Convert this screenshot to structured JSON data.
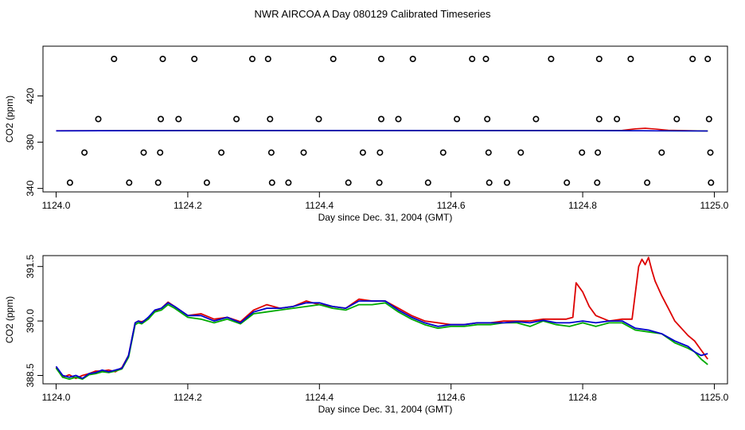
{
  "figure_title": "NWR AIRCOA A  Day 080129  Calibrated Timeseries",
  "chart_data": [
    {
      "type": "scatter",
      "xlabel": "Day since Dec. 31, 2004 (GMT)",
      "ylabel": "CO2 (ppm)",
      "xlim": [
        1123.98,
        1125.02
      ],
      "ylim": [
        337,
        463
      ],
      "xticks": [
        1124.0,
        1124.2,
        1124.4,
        1124.6,
        1124.8,
        1125.0
      ],
      "xtick_labels": [
        "1124.0",
        "1124.2",
        "1124.4",
        "1124.6",
        "1124.8",
        "1125.0"
      ],
      "yticks": [
        340,
        380,
        420
      ],
      "ytick_labels": [
        "340",
        "380",
        "420"
      ],
      "grid": false,
      "points": [
        [
          1124.088,
          452
        ],
        [
          1124.162,
          452
        ],
        [
          1124.21,
          452
        ],
        [
          1124.298,
          452
        ],
        [
          1124.322,
          452
        ],
        [
          1124.421,
          452
        ],
        [
          1124.494,
          452
        ],
        [
          1124.542,
          452
        ],
        [
          1124.632,
          452
        ],
        [
          1124.653,
          452
        ],
        [
          1124.752,
          452
        ],
        [
          1124.825,
          452
        ],
        [
          1124.873,
          452
        ],
        [
          1124.967,
          452
        ],
        [
          1124.99,
          452
        ],
        [
          1124.064,
          400
        ],
        [
          1124.159,
          400
        ],
        [
          1124.186,
          400
        ],
        [
          1124.274,
          400
        ],
        [
          1124.325,
          400
        ],
        [
          1124.399,
          400
        ],
        [
          1124.494,
          400
        ],
        [
          1124.52,
          400
        ],
        [
          1124.609,
          400
        ],
        [
          1124.655,
          400
        ],
        [
          1124.729,
          400
        ],
        [
          1124.825,
          400
        ],
        [
          1124.852,
          400
        ],
        [
          1124.943,
          400
        ],
        [
          1124.992,
          400
        ],
        [
          1124.043,
          371
        ],
        [
          1124.133,
          371
        ],
        [
          1124.158,
          371
        ],
        [
          1124.251,
          371
        ],
        [
          1124.327,
          371
        ],
        [
          1124.376,
          371
        ],
        [
          1124.466,
          371
        ],
        [
          1124.492,
          371
        ],
        [
          1124.588,
          371
        ],
        [
          1124.657,
          371
        ],
        [
          1124.706,
          371
        ],
        [
          1124.799,
          371
        ],
        [
          1124.823,
          371
        ],
        [
          1124.92,
          371
        ],
        [
          1124.994,
          371
        ],
        [
          1124.021,
          345
        ],
        [
          1124.111,
          345
        ],
        [
          1124.155,
          345
        ],
        [
          1124.229,
          345
        ],
        [
          1124.328,
          345
        ],
        [
          1124.353,
          345
        ],
        [
          1124.444,
          345
        ],
        [
          1124.491,
          345
        ],
        [
          1124.565,
          345
        ],
        [
          1124.658,
          345
        ],
        [
          1124.685,
          345
        ],
        [
          1124.776,
          345
        ],
        [
          1124.822,
          345
        ],
        [
          1124.898,
          345
        ],
        [
          1124.995,
          345
        ]
      ],
      "series": [
        {
          "color": "#dd0000",
          "x": [
            1124.0,
            1124.2,
            1124.4,
            1124.6,
            1124.8,
            1124.86,
            1124.88,
            1124.895,
            1124.91,
            1124.93,
            1124.99
          ],
          "y": [
            389.9,
            390.0,
            390.1,
            390.0,
            390.1,
            390.2,
            391.5,
            392.0,
            391.4,
            390.3,
            389.7
          ]
        },
        {
          "color": "#00aa00",
          "x": [
            1124.0,
            1124.2,
            1124.4,
            1124.6,
            1124.8,
            1124.99
          ],
          "y": [
            389.8,
            390.0,
            390.1,
            390.0,
            390.0,
            389.7
          ]
        },
        {
          "color": "#0000cc",
          "x": [
            1124.0,
            1124.2,
            1124.4,
            1124.6,
            1124.8,
            1124.99
          ],
          "y": [
            389.8,
            390.0,
            390.1,
            390.0,
            390.0,
            389.7
          ]
        }
      ]
    },
    {
      "type": "line",
      "xlabel": "Day since Dec. 31, 2004 (GMT)",
      "ylabel": "CO2 (ppm)",
      "xlim": [
        1123.98,
        1125.02
      ],
      "ylim": [
        388.27,
        391.8
      ],
      "xticks": [
        1124.0,
        1124.2,
        1124.4,
        1124.6,
        1124.8,
        1125.0
      ],
      "xtick_labels": [
        "1124.0",
        "1124.2",
        "1124.4",
        "1124.6",
        "1124.8",
        "1125.0"
      ],
      "yticks": [
        388.5,
        390.0,
        391.5
      ],
      "ytick_labels": [
        "388.5",
        "390.0",
        "391.5"
      ],
      "grid": false,
      "series": [
        {
          "color": "#dd0000",
          "x": [
            1124.0,
            1124.01,
            1124.02,
            1124.03,
            1124.04,
            1124.05,
            1124.06,
            1124.07,
            1124.08,
            1124.09,
            1124.1,
            1124.11,
            1124.12,
            1124.125,
            1124.13,
            1124.14,
            1124.15,
            1124.16,
            1124.17,
            1124.18,
            1124.2,
            1124.22,
            1124.24,
            1124.26,
            1124.28,
            1124.3,
            1124.32,
            1124.34,
            1124.36,
            1124.38,
            1124.4,
            1124.42,
            1124.44,
            1124.46,
            1124.48,
            1124.5,
            1124.52,
            1124.54,
            1124.56,
            1124.58,
            1124.6,
            1124.62,
            1124.64,
            1124.66,
            1124.68,
            1124.7,
            1124.72,
            1124.74,
            1124.76,
            1124.775,
            1124.785,
            1124.79,
            1124.8,
            1124.81,
            1124.82,
            1124.84,
            1124.86,
            1124.875,
            1124.885,
            1124.89,
            1124.895,
            1124.9,
            1124.905,
            1124.91,
            1124.92,
            1124.93,
            1124.94,
            1124.95,
            1124.96,
            1124.97,
            1124.98,
            1124.99
          ],
          "y": [
            388.72,
            388.45,
            388.52,
            388.42,
            388.5,
            388.55,
            388.62,
            388.62,
            388.65,
            388.6,
            388.72,
            389.05,
            389.95,
            390.0,
            389.98,
            390.05,
            390.28,
            390.35,
            390.52,
            390.4,
            390.15,
            390.2,
            390.05,
            390.1,
            389.98,
            390.3,
            390.45,
            390.35,
            390.4,
            390.55,
            390.45,
            390.4,
            390.35,
            390.6,
            390.55,
            390.55,
            390.35,
            390.15,
            390.0,
            389.95,
            389.9,
            389.9,
            389.95,
            389.95,
            390.0,
            390.0,
            390.0,
            390.05,
            390.05,
            390.05,
            390.1,
            391.05,
            390.8,
            390.4,
            390.15,
            390.0,
            390.05,
            390.05,
            391.5,
            391.7,
            391.55,
            391.75,
            391.4,
            391.1,
            390.7,
            390.35,
            390.0,
            389.8,
            389.6,
            389.45,
            389.2,
            388.95
          ]
        },
        {
          "color": "#00aa00",
          "x": [
            1124.0,
            1124.01,
            1124.02,
            1124.03,
            1124.04,
            1124.05,
            1124.06,
            1124.07,
            1124.08,
            1124.09,
            1124.1,
            1124.11,
            1124.12,
            1124.125,
            1124.13,
            1124.14,
            1124.15,
            1124.16,
            1124.17,
            1124.18,
            1124.2,
            1124.22,
            1124.24,
            1124.26,
            1124.28,
            1124.3,
            1124.32,
            1124.34,
            1124.36,
            1124.38,
            1124.4,
            1124.42,
            1124.44,
            1124.46,
            1124.48,
            1124.5,
            1124.52,
            1124.54,
            1124.56,
            1124.58,
            1124.6,
            1124.62,
            1124.64,
            1124.66,
            1124.68,
            1124.7,
            1124.72,
            1124.74,
            1124.76,
            1124.78,
            1124.8,
            1124.82,
            1124.84,
            1124.86,
            1124.88,
            1124.9,
            1124.92,
            1124.94,
            1124.96,
            1124.97,
            1124.98,
            1124.99
          ],
          "y": [
            388.7,
            388.45,
            388.4,
            388.45,
            388.4,
            388.52,
            388.55,
            388.6,
            388.58,
            388.62,
            388.68,
            389.0,
            389.9,
            389.95,
            389.92,
            390.05,
            390.25,
            390.3,
            390.45,
            390.35,
            390.1,
            390.05,
            389.95,
            390.05,
            389.92,
            390.2,
            390.25,
            390.3,
            390.35,
            390.4,
            390.45,
            390.35,
            390.3,
            390.45,
            390.45,
            390.5,
            390.25,
            390.05,
            389.9,
            389.8,
            389.85,
            389.85,
            389.9,
            389.9,
            389.95,
            389.95,
            389.85,
            390.0,
            389.9,
            389.85,
            389.95,
            389.85,
            389.95,
            389.95,
            389.75,
            389.7,
            389.65,
            389.4,
            389.25,
            389.15,
            388.95,
            388.8
          ]
        },
        {
          "color": "#0000cc",
          "x": [
            1124.0,
            1124.01,
            1124.02,
            1124.03,
            1124.04,
            1124.05,
            1124.06,
            1124.07,
            1124.08,
            1124.09,
            1124.1,
            1124.11,
            1124.12,
            1124.125,
            1124.13,
            1124.14,
            1124.15,
            1124.16,
            1124.17,
            1124.18,
            1124.2,
            1124.22,
            1124.24,
            1124.26,
            1124.28,
            1124.3,
            1124.32,
            1124.34,
            1124.36,
            1124.38,
            1124.4,
            1124.42,
            1124.44,
            1124.46,
            1124.48,
            1124.5,
            1124.52,
            1124.54,
            1124.56,
            1124.58,
            1124.6,
            1124.62,
            1124.64,
            1124.66,
            1124.68,
            1124.7,
            1124.72,
            1124.74,
            1124.76,
            1124.78,
            1124.8,
            1124.82,
            1124.84,
            1124.86,
            1124.88,
            1124.9,
            1124.92,
            1124.94,
            1124.96,
            1124.97,
            1124.98,
            1124.99
          ],
          "y": [
            388.75,
            388.5,
            388.45,
            388.5,
            388.42,
            388.55,
            388.58,
            388.65,
            388.6,
            388.65,
            388.7,
            389.05,
            389.95,
            390.0,
            389.95,
            390.1,
            390.3,
            390.35,
            390.5,
            390.4,
            390.15,
            390.15,
            390.0,
            390.1,
            389.95,
            390.25,
            390.35,
            390.35,
            390.4,
            390.5,
            390.5,
            390.4,
            390.35,
            390.55,
            390.55,
            390.55,
            390.3,
            390.1,
            389.95,
            389.85,
            389.9,
            389.9,
            389.95,
            389.95,
            389.95,
            389.98,
            389.95,
            390.02,
            389.95,
            389.95,
            390.0,
            389.95,
            390.0,
            390.0,
            389.8,
            389.75,
            389.65,
            389.45,
            389.3,
            389.15,
            389.05,
            389.1
          ]
        }
      ]
    }
  ]
}
